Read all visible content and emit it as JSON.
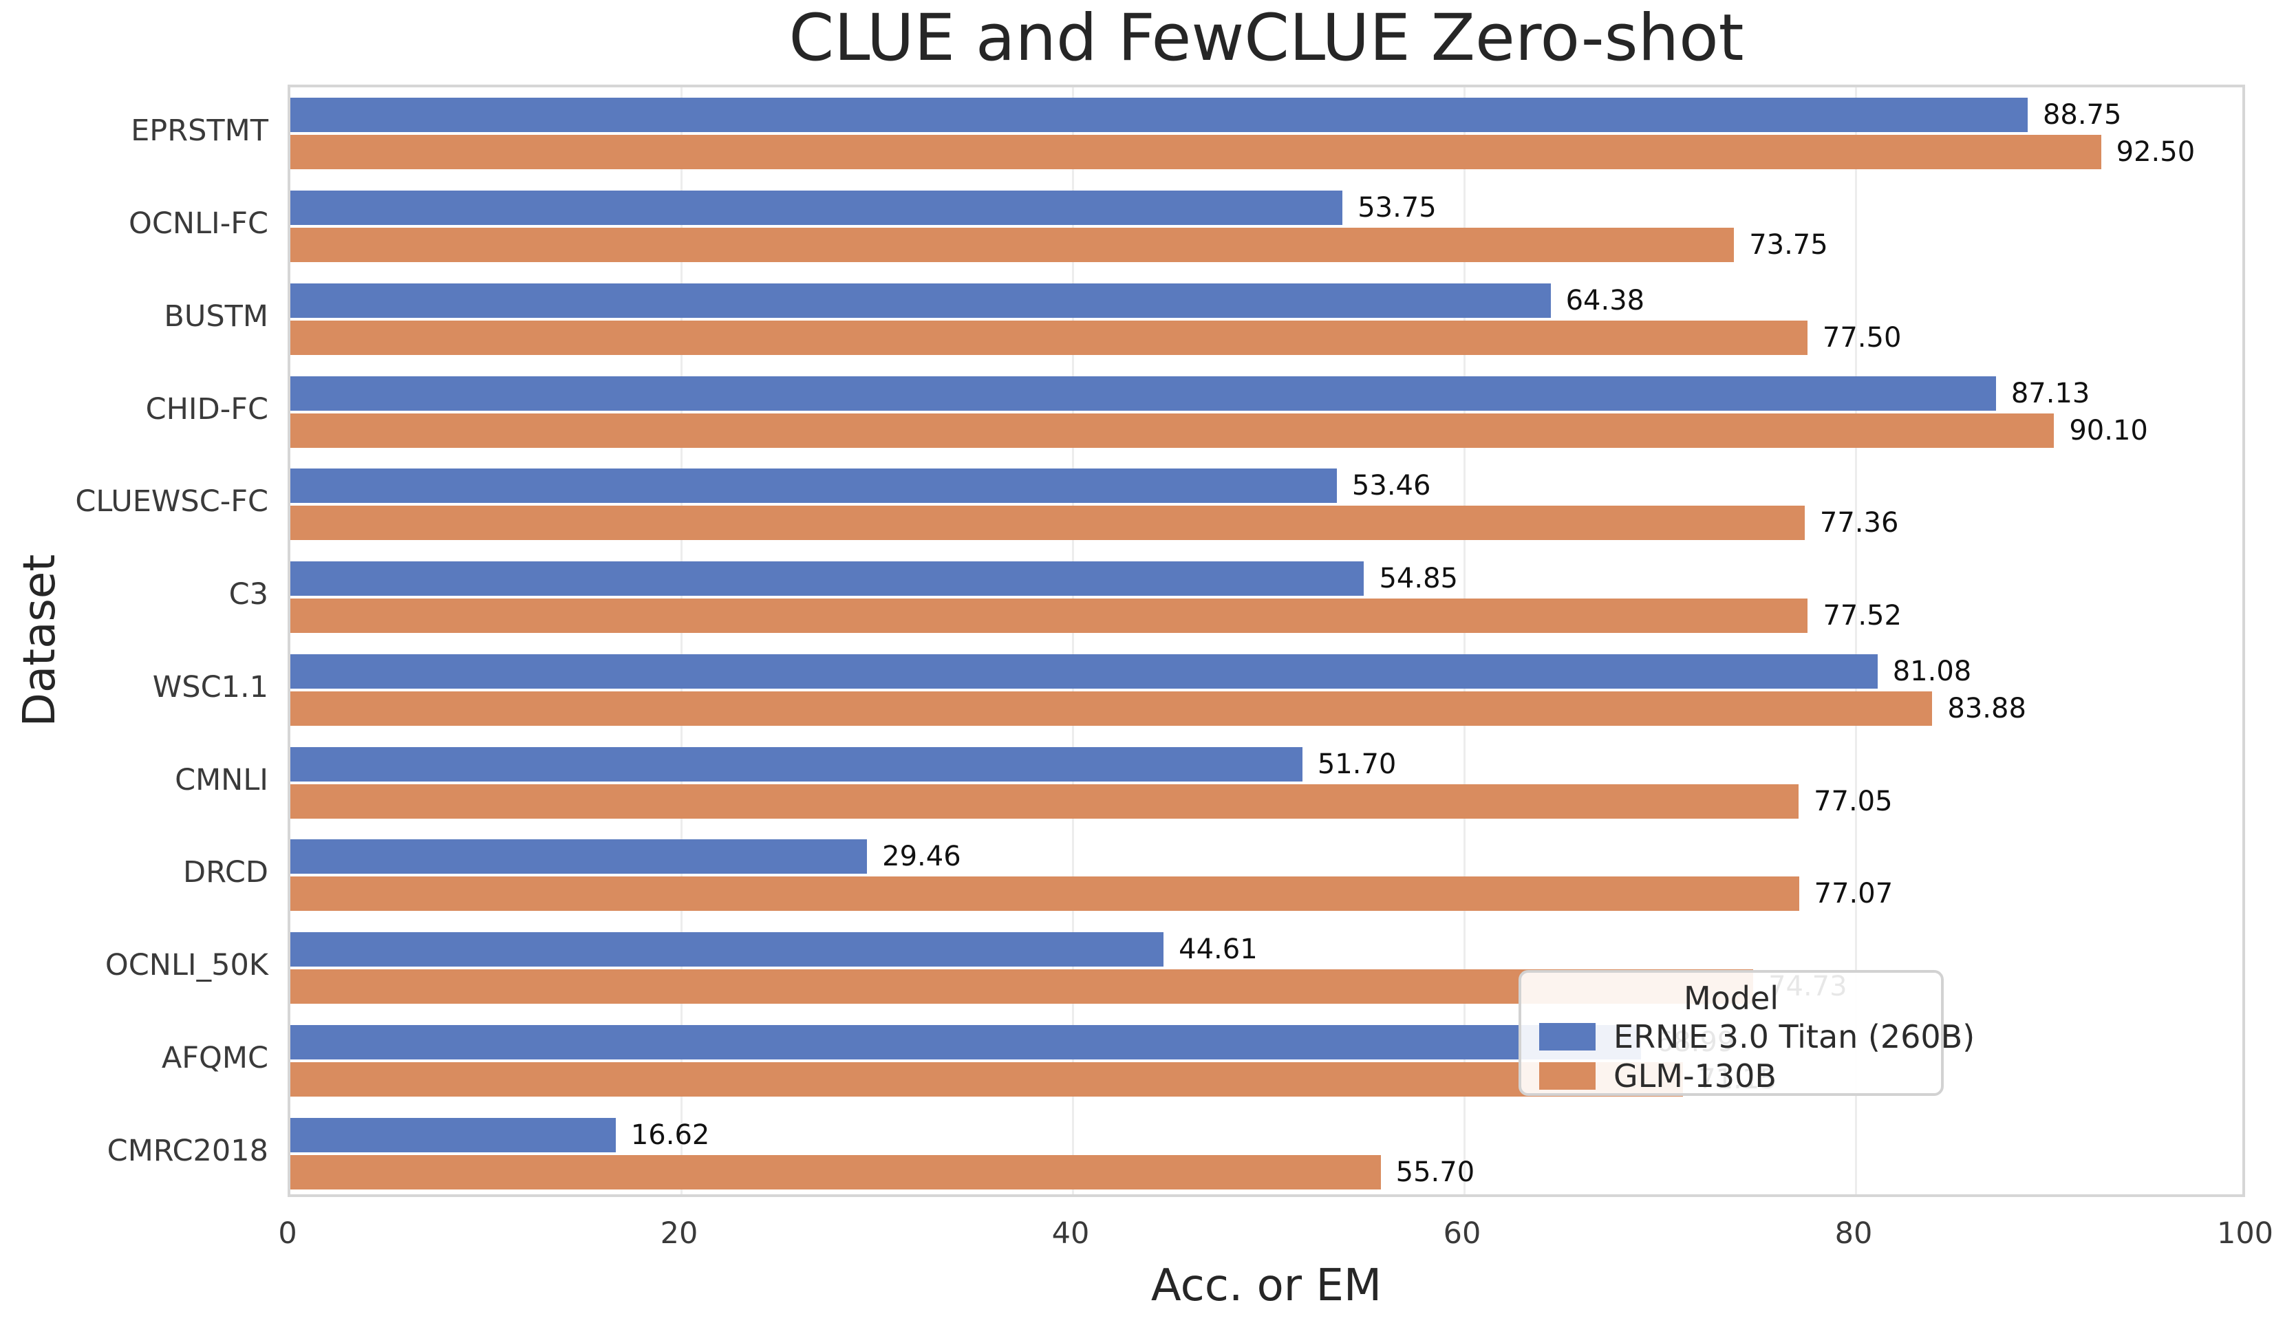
{
  "chart_data": {
    "type": "bar",
    "orientation": "horizontal",
    "title": "CLUE and FewCLUE Zero-shot",
    "xlabel": "Acc. or EM",
    "ylabel": "Dataset",
    "categories": [
      "EPRSTMT",
      "OCNLI-FC",
      "BUSTM",
      "CHID-FC",
      "CLUEWSC-FC",
      "C3",
      "WSC1.1",
      "CMNLI",
      "DRCD",
      "OCNLI_50K",
      "AFQMC",
      "CMRC2018"
    ],
    "series": [
      {
        "name": "ERNIE 3.0 Titan (260B)",
        "color": "#5a7abe",
        "values": [
          88.75,
          53.75,
          64.38,
          87.13,
          53.46,
          54.85,
          81.08,
          51.7,
          29.46,
          44.61,
          68.99,
          16.62
        ]
      },
      {
        "name": "GLM-130B",
        "color": "#d98c5f",
        "values": [
          92.5,
          73.75,
          77.5,
          90.1,
          77.36,
          77.52,
          83.88,
          77.05,
          77.07,
          74.73,
          71.15,
          55.7
        ]
      }
    ],
    "xlim": [
      0,
      100
    ],
    "xticks": [
      0,
      20,
      40,
      60,
      80,
      100
    ],
    "grid": true,
    "gridline_color": "#ededed",
    "value_label_decimals": 2,
    "legend": {
      "title": "Model",
      "position": "lower right"
    }
  }
}
